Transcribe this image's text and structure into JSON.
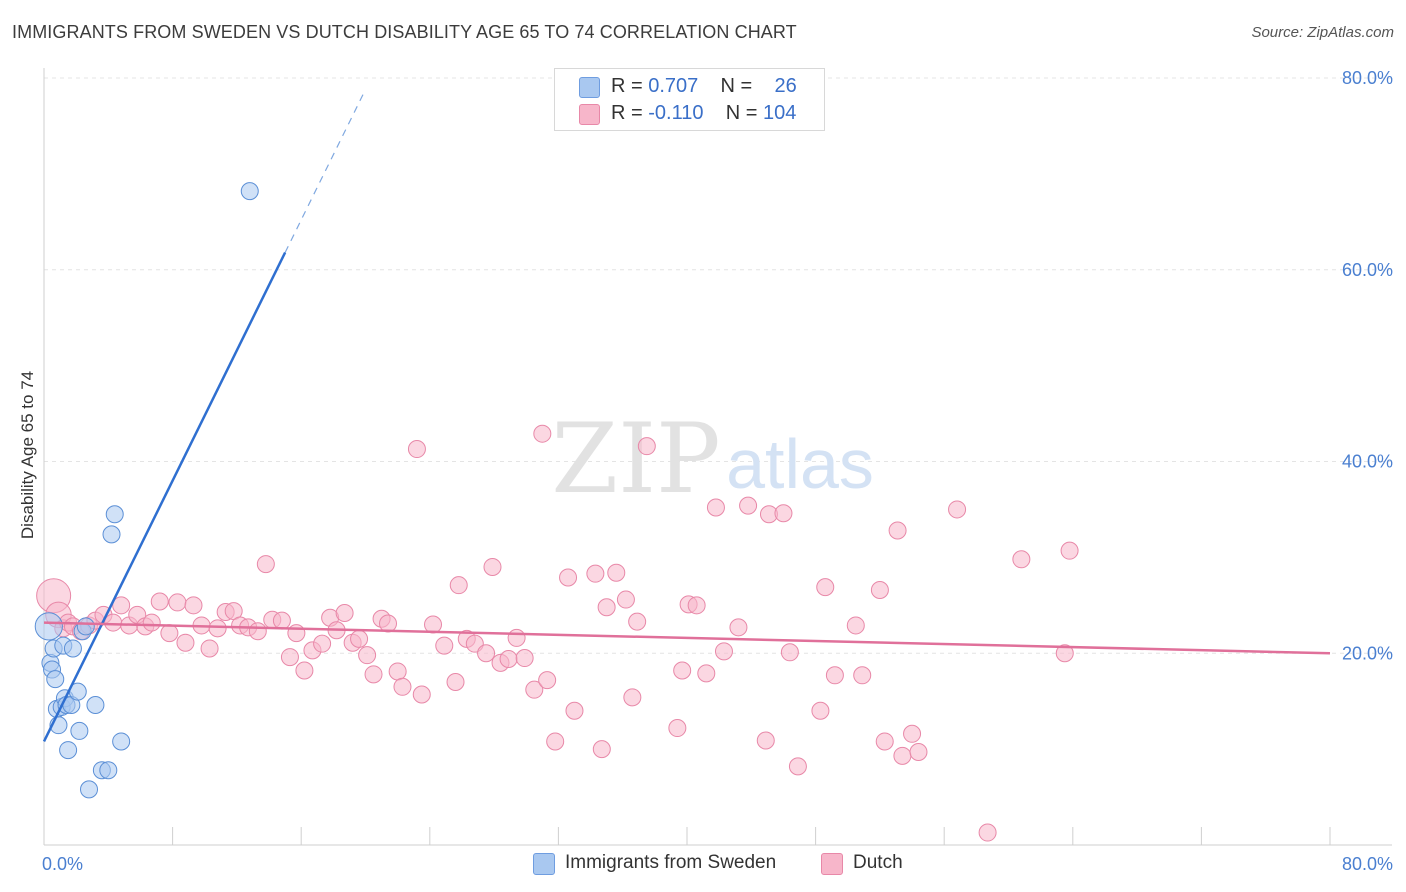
{
  "title": "IMMIGRANTS FROM SWEDEN VS DUTCH DISABILITY AGE 65 TO 74 CORRELATION CHART",
  "source": "Source: ZipAtlas.com",
  "watermark": {
    "zip": "ZIP",
    "atlas": "atlas"
  },
  "legend": {
    "rows": [
      {
        "r_label": "R =",
        "r_value": "0.707",
        "n_label": "N =",
        "n_value": "26",
        "color": "#a9c8f0"
      },
      {
        "r_label": "R =",
        "r_value": "-0.110",
        "n_label": "N =",
        "n_value": "104",
        "color": "#f7b6ca"
      }
    ]
  },
  "bottom_legend": [
    {
      "label": "Immigrants from Sweden",
      "color": "#a9c8f0"
    },
    {
      "label": "Dutch",
      "color": "#f7b6ca"
    }
  ],
  "chart_data": {
    "type": "scatter",
    "title": "IMMIGRANTS FROM SWEDEN VS DUTCH DISABILITY AGE 65 TO 74 CORRELATION CHART",
    "xlabel": "",
    "ylabel": "Disability Age 65 to 74",
    "xlim": [
      0,
      80
    ],
    "ylim": [
      0,
      80
    ],
    "x_tick_labels": [
      "0.0%",
      "80.0%"
    ],
    "y_ticks": [
      20,
      40,
      60,
      80
    ],
    "y_tick_labels": [
      "20.0%",
      "40.0%",
      "60.0%",
      "80.0%"
    ],
    "grid": true,
    "series": [
      {
        "name": "Immigrants from Sweden",
        "color": "#a9c8f0",
        "stroke": "#5b8fd6",
        "line_color": "#2f6fd0",
        "trend": {
          "x0": 0.0,
          "y0": 10.8,
          "x1": 15.0,
          "y1": 61.8,
          "dash_to_x": 20.0
        },
        "points": [
          [
            0.3,
            22.8,
            1.6
          ],
          [
            0.4,
            19.0,
            1.0
          ],
          [
            0.5,
            18.3,
            1.0
          ],
          [
            0.6,
            20.5,
            1.0
          ],
          [
            0.7,
            17.3,
            1.0
          ],
          [
            0.8,
            14.2,
            1.0
          ],
          [
            0.9,
            12.5,
            1.0
          ],
          [
            1.1,
            14.4,
            1.0
          ],
          [
            1.2,
            20.8,
            1.0
          ],
          [
            1.3,
            15.3,
            1.0
          ],
          [
            1.4,
            14.6,
            1.0
          ],
          [
            1.5,
            9.9,
            1.0
          ],
          [
            1.7,
            14.6,
            1.0
          ],
          [
            1.8,
            20.5,
            1.0
          ],
          [
            2.1,
            16.0,
            1.0
          ],
          [
            2.2,
            11.9,
            1.0
          ],
          [
            2.4,
            22.3,
            1.0
          ],
          [
            2.6,
            22.8,
            1.0
          ],
          [
            2.8,
            5.8,
            1.0
          ],
          [
            3.2,
            14.6,
            1.0
          ],
          [
            3.6,
            7.8,
            1.0
          ],
          [
            4.0,
            7.8,
            1.0
          ],
          [
            4.2,
            32.4,
            1.0
          ],
          [
            4.4,
            34.5,
            1.0
          ],
          [
            4.8,
            10.8,
            1.0
          ],
          [
            12.8,
            68.2,
            1.0
          ]
        ]
      },
      {
        "name": "Dutch",
        "color": "#f7b6ca",
        "stroke": "#e888a8",
        "line_color": "#e0709a",
        "trend": {
          "x0": 0.0,
          "y0": 23.2,
          "x1": 80.0,
          "y1": 20.0
        },
        "points": [
          [
            0.6,
            26.0,
            2.0
          ],
          [
            0.9,
            24.0,
            1.5
          ],
          [
            1.2,
            22.6,
            1.0
          ],
          [
            1.5,
            23.2,
            1.0
          ],
          [
            1.8,
            22.8,
            1.0
          ],
          [
            2.3,
            22.3,
            1.0
          ],
          [
            2.8,
            22.9,
            1.0
          ],
          [
            3.2,
            23.4,
            1.0
          ],
          [
            3.7,
            24.0,
            1.0
          ],
          [
            4.3,
            23.2,
            1.0
          ],
          [
            4.8,
            25.0,
            1.0
          ],
          [
            5.3,
            22.9,
            1.0
          ],
          [
            5.8,
            24.0,
            1.0
          ],
          [
            6.3,
            22.8,
            1.0
          ],
          [
            6.7,
            23.2,
            1.0
          ],
          [
            7.2,
            25.4,
            1.0
          ],
          [
            7.8,
            22.1,
            1.0
          ],
          [
            8.3,
            25.3,
            1.0
          ],
          [
            8.8,
            21.1,
            1.0
          ],
          [
            9.3,
            25.0,
            1.0
          ],
          [
            9.8,
            22.9,
            1.0
          ],
          [
            10.3,
            20.5,
            1.0
          ],
          [
            10.8,
            22.6,
            1.0
          ],
          [
            11.3,
            24.3,
            1.0
          ],
          [
            11.8,
            24.4,
            1.0
          ],
          [
            12.2,
            22.9,
            1.0
          ],
          [
            12.7,
            22.7,
            1.0
          ],
          [
            13.3,
            22.3,
            1.0
          ],
          [
            13.8,
            29.3,
            1.0
          ],
          [
            14.2,
            23.5,
            1.0
          ],
          [
            14.8,
            23.4,
            1.0
          ],
          [
            15.3,
            19.6,
            1.0
          ],
          [
            15.7,
            22.1,
            1.0
          ],
          [
            16.2,
            18.2,
            1.0
          ],
          [
            16.7,
            20.3,
            1.0
          ],
          [
            17.3,
            21.0,
            1.0
          ],
          [
            17.8,
            23.7,
            1.0
          ],
          [
            18.2,
            22.4,
            1.0
          ],
          [
            18.7,
            24.2,
            1.0
          ],
          [
            19.2,
            21.1,
            1.0
          ],
          [
            19.6,
            21.5,
            1.0
          ],
          [
            20.1,
            19.8,
            1.0
          ],
          [
            20.5,
            17.8,
            1.0
          ],
          [
            21.0,
            23.6,
            1.0
          ],
          [
            21.4,
            23.1,
            1.0
          ],
          [
            22.0,
            18.1,
            1.0
          ],
          [
            22.3,
            16.5,
            1.0
          ],
          [
            23.2,
            41.3,
            1.0
          ],
          [
            23.5,
            15.7,
            1.0
          ],
          [
            24.2,
            23.0,
            1.0
          ],
          [
            24.9,
            20.8,
            1.0
          ],
          [
            25.6,
            17.0,
            1.0
          ],
          [
            25.8,
            27.1,
            1.0
          ],
          [
            26.3,
            21.5,
            1.0
          ],
          [
            26.8,
            21.0,
            1.0
          ],
          [
            27.5,
            20.0,
            1.0
          ],
          [
            27.9,
            29.0,
            1.0
          ],
          [
            28.4,
            19.0,
            1.0
          ],
          [
            28.9,
            19.4,
            1.0
          ],
          [
            29.4,
            21.6,
            1.0
          ],
          [
            29.9,
            19.5,
            1.0
          ],
          [
            30.5,
            16.2,
            1.0
          ],
          [
            31.0,
            42.9,
            1.0
          ],
          [
            31.3,
            17.2,
            1.0
          ],
          [
            31.8,
            10.8,
            1.0
          ],
          [
            32.6,
            27.9,
            1.0
          ],
          [
            33.0,
            14.0,
            1.0
          ],
          [
            34.3,
            28.3,
            1.0
          ],
          [
            34.7,
            10.0,
            1.0
          ],
          [
            35.0,
            24.8,
            1.0
          ],
          [
            35.6,
            28.4,
            1.0
          ],
          [
            36.2,
            25.6,
            1.0
          ],
          [
            36.6,
            15.4,
            1.0
          ],
          [
            36.9,
            23.3,
            1.0
          ],
          [
            37.5,
            41.6,
            1.0
          ],
          [
            39.4,
            12.2,
            1.0
          ],
          [
            39.7,
            18.2,
            1.0
          ],
          [
            40.1,
            25.1,
            1.0
          ],
          [
            40.6,
            25.0,
            1.0
          ],
          [
            41.2,
            17.9,
            1.0
          ],
          [
            41.8,
            35.2,
            1.0
          ],
          [
            42.3,
            20.2,
            1.0
          ],
          [
            43.2,
            22.7,
            1.0
          ],
          [
            43.8,
            35.4,
            1.0
          ],
          [
            44.9,
            10.9,
            1.0
          ],
          [
            45.1,
            34.5,
            1.0
          ],
          [
            46.0,
            34.6,
            1.0
          ],
          [
            46.4,
            20.1,
            1.0
          ],
          [
            46.9,
            8.2,
            1.0
          ],
          [
            48.3,
            14.0,
            1.0
          ],
          [
            48.6,
            26.9,
            1.0
          ],
          [
            49.2,
            17.7,
            1.0
          ],
          [
            50.5,
            22.9,
            1.0
          ],
          [
            50.9,
            17.7,
            1.0
          ],
          [
            52.0,
            26.6,
            1.0
          ],
          [
            52.3,
            10.8,
            1.0
          ],
          [
            53.1,
            32.8,
            1.0
          ],
          [
            53.4,
            9.3,
            1.0
          ],
          [
            54.0,
            11.6,
            1.0
          ],
          [
            54.4,
            9.7,
            1.0
          ],
          [
            56.8,
            35.0,
            1.0
          ],
          [
            58.7,
            1.3,
            1.0
          ],
          [
            60.8,
            29.8,
            1.0
          ],
          [
            63.5,
            20.0,
            1.0
          ],
          [
            63.8,
            30.7,
            1.0
          ]
        ]
      }
    ]
  }
}
